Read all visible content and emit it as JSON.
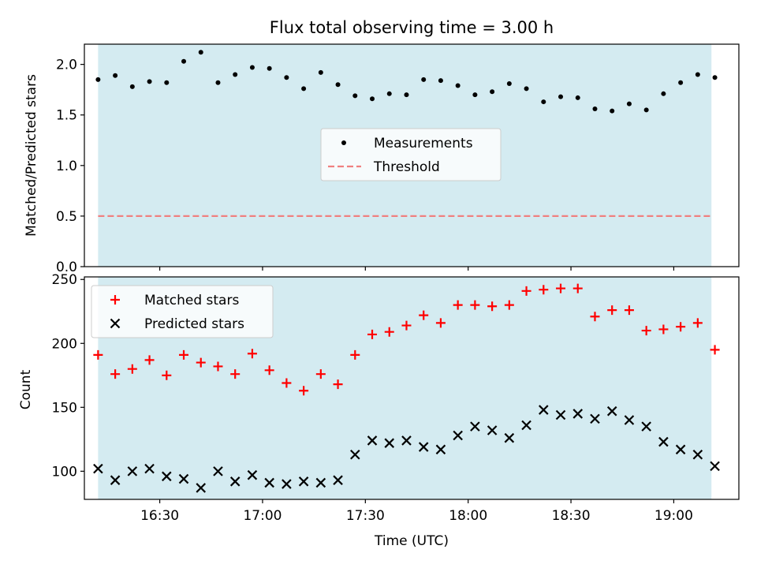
{
  "chart_data": [
    {
      "type": "scatter",
      "title": "Flux total observing time = 3.00 h",
      "xlabel": "",
      "ylabel": "Matched/Predicted stars",
      "ylim": [
        0,
        2.2
      ],
      "yticks": [
        "0.0",
        "0.5",
        "1.0",
        "1.5",
        "2.0"
      ],
      "ytick_values": [
        0,
        0.5,
        1.0,
        1.5,
        2.0
      ],
      "xlim": [
        "16:08",
        "19:19"
      ],
      "shaded_span": [
        "16:12",
        "19:11"
      ],
      "shade_color": "#d4ebf1",
      "threshold": 0.5,
      "threshold_color": "#f08080",
      "x": [
        "16:12",
        "16:17",
        "16:22",
        "16:27",
        "16:32",
        "16:37",
        "16:42",
        "16:47",
        "16:52",
        "16:57",
        "17:02",
        "17:07",
        "17:12",
        "17:17",
        "17:22",
        "17:27",
        "17:32",
        "17:37",
        "17:42",
        "17:47",
        "17:52",
        "17:57",
        "18:02",
        "18:07",
        "18:12",
        "18:17",
        "18:22",
        "18:27",
        "18:32",
        "18:37",
        "18:42",
        "18:47",
        "18:52",
        "18:57",
        "19:02",
        "19:07",
        "19:12"
      ],
      "series": [
        {
          "name": "Measurements",
          "color": "#000000",
          "marker": "dot",
          "values": [
            1.85,
            1.89,
            1.78,
            1.83,
            1.82,
            2.03,
            2.12,
            1.82,
            1.9,
            1.97,
            1.96,
            1.87,
            1.76,
            1.92,
            1.8,
            1.69,
            1.66,
            1.71,
            1.7,
            1.85,
            1.84,
            1.79,
            1.7,
            1.73,
            1.81,
            1.76,
            1.63,
            1.68,
            1.67,
            1.56,
            1.54,
            1.61,
            1.55,
            1.71,
            1.82,
            1.9,
            1.87
          ]
        },
        {
          "name": "Threshold",
          "color": "#f08080",
          "marker": "dashed-line",
          "values": []
        }
      ],
      "legend_position": "center"
    },
    {
      "type": "scatter",
      "title": "",
      "xlabel": "Time (UTC)",
      "ylabel": "Count",
      "ylim": [
        78,
        252
      ],
      "yticks": [
        "100",
        "150",
        "200",
        "250"
      ],
      "ytick_values": [
        100,
        150,
        200,
        250
      ],
      "xlim": [
        "16:08",
        "19:19"
      ],
      "xticks": [
        "16:30",
        "17:00",
        "17:30",
        "18:00",
        "18:30",
        "19:00"
      ],
      "shaded_span": [
        "16:12",
        "19:11"
      ],
      "shade_color": "#d4ebf1",
      "x": [
        "16:12",
        "16:17",
        "16:22",
        "16:27",
        "16:32",
        "16:37",
        "16:42",
        "16:47",
        "16:52",
        "16:57",
        "17:02",
        "17:07",
        "17:12",
        "17:17",
        "17:22",
        "17:27",
        "17:32",
        "17:37",
        "17:42",
        "17:47",
        "17:52",
        "17:57",
        "18:02",
        "18:07",
        "18:12",
        "18:17",
        "18:22",
        "18:27",
        "18:32",
        "18:37",
        "18:42",
        "18:47",
        "18:52",
        "18:57",
        "19:02",
        "19:07",
        "19:12"
      ],
      "series": [
        {
          "name": "Matched stars",
          "color": "#ff0000",
          "marker": "plus",
          "values": [
            191,
            176,
            180,
            187,
            175,
            191,
            185,
            182,
            176,
            192,
            179,
            169,
            163,
            176,
            168,
            191,
            207,
            209,
            214,
            222,
            216,
            230,
            230,
            229,
            230,
            241,
            242,
            243,
            243,
            221,
            226,
            226,
            210,
            211,
            213,
            216,
            195
          ]
        },
        {
          "name": "Predicted stars",
          "color": "#000000",
          "marker": "x",
          "values": [
            102,
            93,
            100,
            102,
            96,
            94,
            87,
            100,
            92,
            97,
            91,
            90,
            92,
            91,
            93,
            113,
            124,
            122,
            124,
            119,
            117,
            128,
            135,
            132,
            126,
            136,
            148,
            144,
            145,
            141,
            147,
            140,
            135,
            123,
            117,
            113,
            104
          ]
        }
      ],
      "legend_position": "upper left"
    }
  ]
}
